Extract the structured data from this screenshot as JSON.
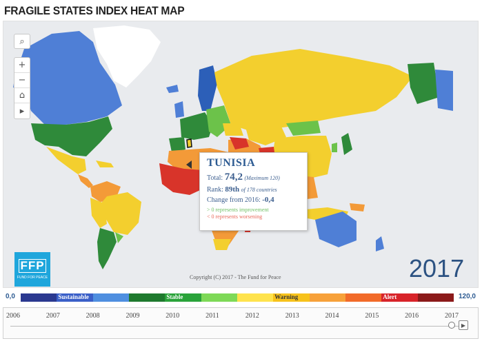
{
  "page": {
    "title": "FRAGILE STATES INDEX HEAT MAP"
  },
  "controls": {
    "search_icon": "⌕",
    "zoom_in": "+",
    "zoom_out": "−",
    "home_icon": "⌂",
    "play_icon": "▸"
  },
  "popup": {
    "country": "TUNISIA",
    "total_label": "Total:",
    "total_value": "74,2",
    "total_max": "(Maximum 120)",
    "rank_label": "Rank:",
    "rank_value": "89th",
    "rank_of": "of 178 countries",
    "change_label": "Change from 2016:",
    "change_value": "-0,4",
    "legend_positive": "> 0 represents improvement",
    "legend_negative": "< 0 represents worsening"
  },
  "logo": {
    "mark": "FFP",
    "sub": "FUND FOR PEACE"
  },
  "copyright": "Copyright (C) 2017 - The Fund for Peace",
  "current_year": "2017",
  "scale": {
    "min": "0,0",
    "max": "120,0",
    "segments": [
      {
        "color": "#2b3990"
      },
      {
        "color": "#3a5fc8",
        "label": "Sustainable",
        "label_color": "#ffffff"
      },
      {
        "color": "#4f8fe0"
      },
      {
        "color": "#1f7a2e"
      },
      {
        "color": "#2aa33a",
        "label": "Stable",
        "label_color": "#ffffff"
      },
      {
        "color": "#7ed957"
      },
      {
        "color": "#ffe34d"
      },
      {
        "color": "#f7c21b",
        "label": "Warning",
        "label_color": "#333333"
      },
      {
        "color": "#f7a13a"
      },
      {
        "color": "#f26b2a"
      },
      {
        "color": "#d8242a",
        "label": "Alert",
        "label_color": "#ffffff"
      },
      {
        "color": "#8b1a1a"
      }
    ]
  },
  "timeline": {
    "years": [
      "2006",
      "2007",
      "2008",
      "2009",
      "2010",
      "2011",
      "2012",
      "2013",
      "2014",
      "2015",
      "2016",
      "2017"
    ],
    "selected": "2017"
  },
  "map_colors": {
    "ocean": "#e9ebee",
    "sustainable": "#4f7fd6",
    "stable_dark": "#2f8a3a",
    "stable_light": "#6cc24a",
    "warning": "#f3cf2e",
    "elevated": "#f39a38",
    "alert": "#d8342a",
    "alert_dark": "#a71d1d",
    "greenland": "#ffffff"
  }
}
